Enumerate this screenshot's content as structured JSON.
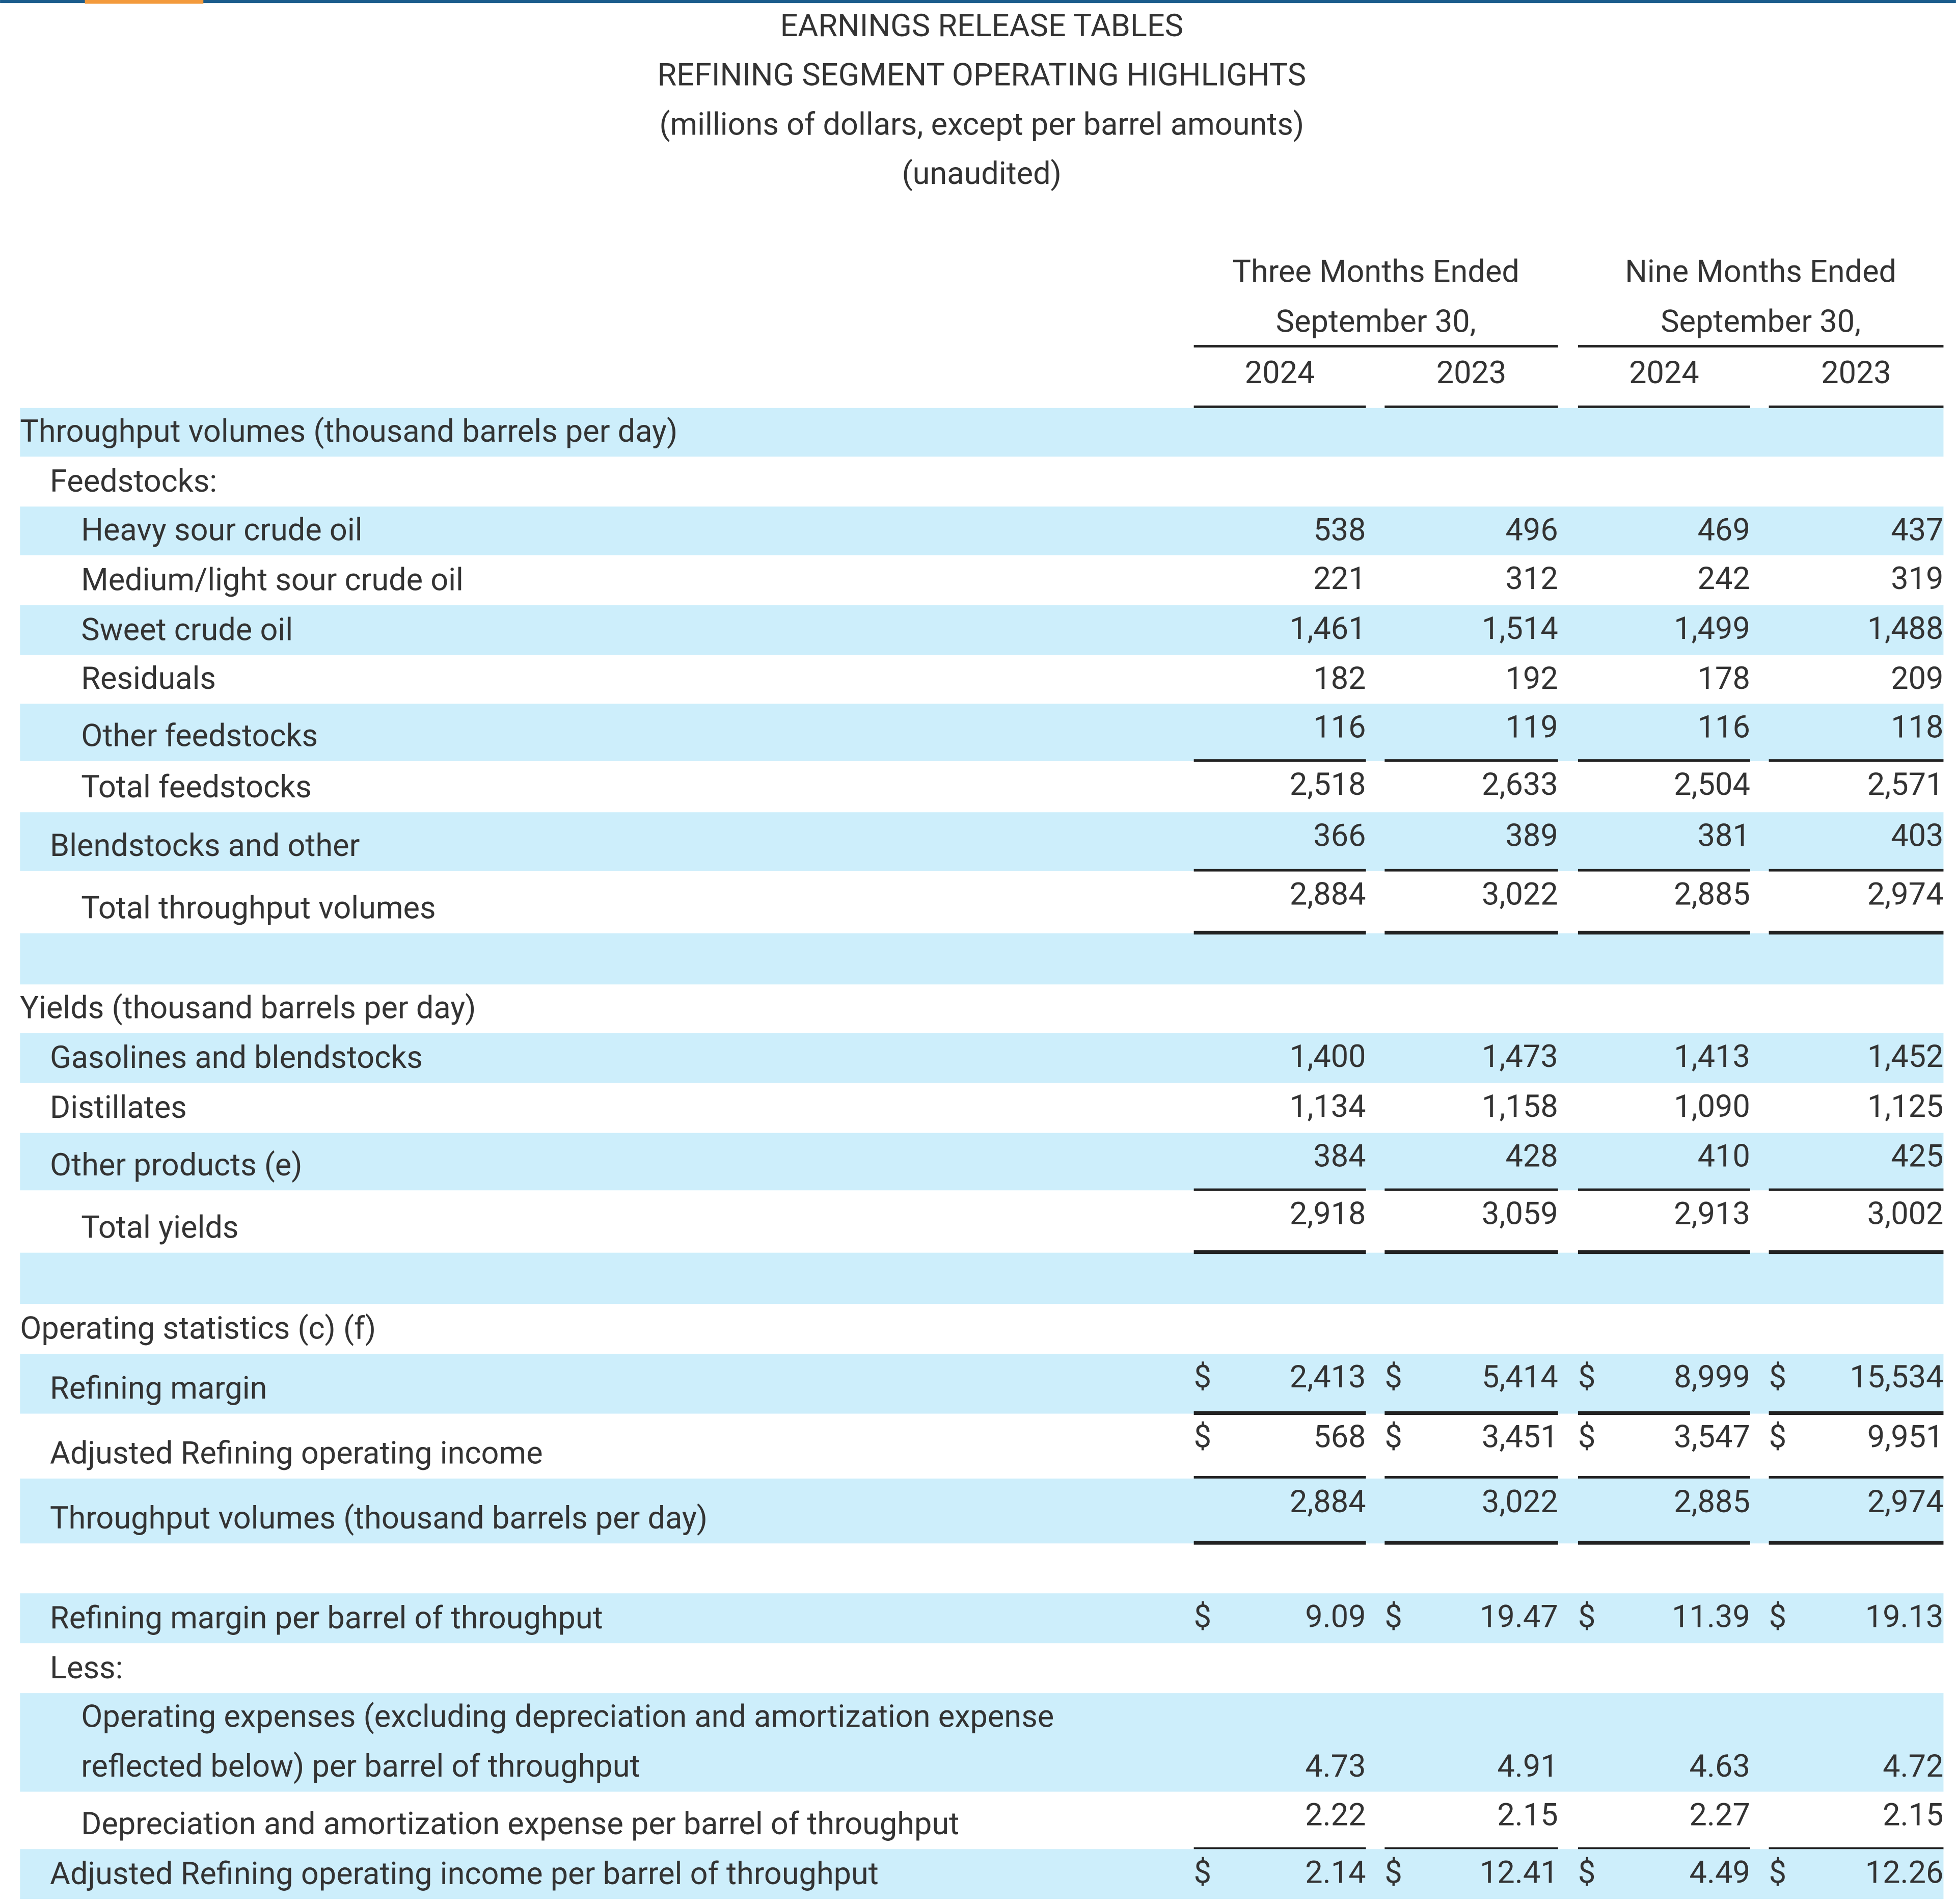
{
  "header": {
    "lines": [
      "EARNINGS RELEASE TABLES",
      "REFINING SEGMENT OPERATING HIGHLIGHTS",
      "(millions of dollars, except per barrel amounts)",
      "(unaudited)"
    ]
  },
  "table": {
    "column_groups": [
      {
        "period": "Three Months Ended",
        "date": "September 30,"
      },
      {
        "period": "Nine Months Ended",
        "date": "September 30,"
      }
    ],
    "years": [
      "2024",
      "2023",
      "2024",
      "2023"
    ],
    "rows": [
      {
        "label": "Throughput volumes (thousand barrels per day)"
      },
      {
        "label": "Feedstocks:"
      },
      {
        "label": "Heavy sour crude oil",
        "values": [
          "538",
          "496",
          "469",
          "437"
        ]
      },
      {
        "label": "Medium/light sour crude oil",
        "values": [
          "221",
          "312",
          "242",
          "319"
        ]
      },
      {
        "label": "Sweet crude oil",
        "values": [
          "1,461",
          "1,514",
          "1,499",
          "1,488"
        ]
      },
      {
        "label": "Residuals",
        "values": [
          "182",
          "192",
          "178",
          "209"
        ]
      },
      {
        "label": "Other feedstocks",
        "values": [
          "116",
          "119",
          "116",
          "118"
        ]
      },
      {
        "label": "Total feedstocks",
        "values": [
          "2,518",
          "2,633",
          "2,504",
          "2,571"
        ]
      },
      {
        "label": "Blendstocks and other",
        "values": [
          "366",
          "389",
          "381",
          "403"
        ]
      },
      {
        "label": "Total throughput volumes",
        "values": [
          "2,884",
          "3,022",
          "2,885",
          "2,974"
        ]
      },
      {
        "label": "Yields (thousand barrels per day)"
      },
      {
        "label": "Gasolines and blendstocks",
        "values": [
          "1,400",
          "1,473",
          "1,413",
          "1,452"
        ]
      },
      {
        "label": "Distillates",
        "values": [
          "1,134",
          "1,158",
          "1,090",
          "1,125"
        ]
      },
      {
        "label": "Other products (e)",
        "values": [
          "384",
          "428",
          "410",
          "425"
        ]
      },
      {
        "label": "Total yields",
        "values": [
          "2,918",
          "3,059",
          "2,913",
          "3,002"
        ]
      },
      {
        "label": "Operating statistics (c) (f)"
      },
      {
        "label": "Refining margin",
        "currency": "$",
        "values": [
          "2,413",
          "5,414",
          "8,999",
          "15,534"
        ]
      },
      {
        "label": "Adjusted Refining operating income",
        "currency": "$",
        "values": [
          "568",
          "3,451",
          "3,547",
          "9,951"
        ]
      },
      {
        "label": "Throughput volumes (thousand barrels per day)",
        "values": [
          "2,884",
          "3,022",
          "2,885",
          "2,974"
        ]
      },
      {
        "label": "Refining margin per barrel of throughput",
        "currency": "$",
        "values": [
          "9.09",
          "19.47",
          "11.39",
          "19.13"
        ]
      },
      {
        "label": "Less:"
      },
      {
        "label": [
          "Operating expenses (excluding depreciation and amortization expense",
          "reflected below) per barrel of throughput"
        ],
        "values": [
          "4.73",
          "4.91",
          "4.63",
          "4.72"
        ]
      },
      {
        "label": "Depreciation and amortization expense per barrel of throughput",
        "values": [
          "2.22",
          "2.15",
          "2.27",
          "2.15"
        ]
      },
      {
        "label": "Adjusted Refining operating income per barrel of throughput",
        "currency": "$",
        "values": [
          "2.14",
          "12.41",
          "4.49",
          "12.26"
        ]
      }
    ]
  }
}
